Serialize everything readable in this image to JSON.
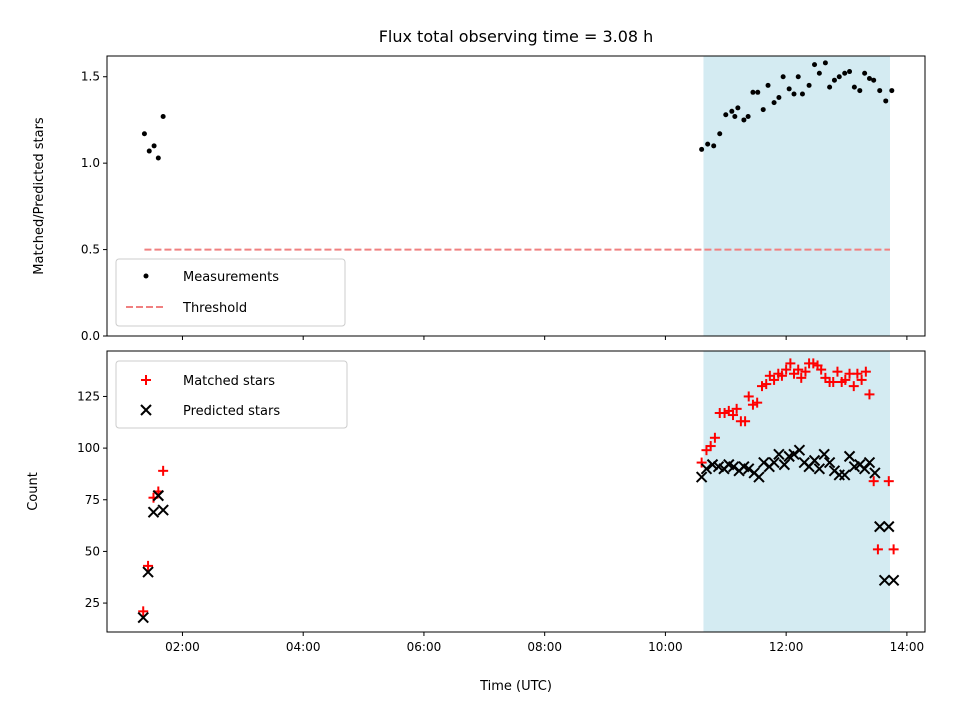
{
  "chart_data": [
    {
      "type": "scatter",
      "title": "Flux total observing time = 3.08 h",
      "ylabel": "Matched/Predicted stars",
      "ylim": [
        0,
        1.62
      ],
      "yticks": [
        0.0,
        0.5,
        1.0,
        1.5
      ],
      "ytick_labels": [
        "0.0",
        "0.5",
        "1.0",
        "1.5"
      ],
      "xlim_hours": [
        0.75,
        14.3
      ],
      "xticks_hours": [
        2,
        4,
        6,
        8,
        10,
        12,
        14
      ],
      "xtick_labels_visible": false,
      "shaded_span_hours": [
        10.63,
        13.72
      ],
      "shaded_color": "#d4ebf2",
      "legend_position": "lower-left",
      "series": [
        {
          "name": "Measurements",
          "marker": "dot",
          "color": "#000000",
          "x": [
            1.37,
            1.45,
            1.53,
            1.6,
            1.68,
            10.6,
            10.7,
            10.8,
            10.9,
            11.0,
            11.1,
            11.15,
            11.2,
            11.3,
            11.37,
            11.45,
            11.53,
            11.62,
            11.7,
            11.8,
            11.88,
            11.95,
            12.05,
            12.13,
            12.2,
            12.27,
            12.38,
            12.47,
            12.55,
            12.65,
            12.72,
            12.8,
            12.88,
            12.97,
            13.05,
            13.13,
            13.22,
            13.3,
            13.38,
            13.45,
            13.55,
            13.65,
            13.75
          ],
          "y": [
            1.17,
            1.07,
            1.1,
            1.03,
            1.27,
            1.08,
            1.11,
            1.1,
            1.17,
            1.28,
            1.3,
            1.27,
            1.32,
            1.25,
            1.27,
            1.41,
            1.41,
            1.31,
            1.45,
            1.35,
            1.38,
            1.5,
            1.43,
            1.4,
            1.5,
            1.4,
            1.45,
            1.57,
            1.52,
            1.58,
            1.44,
            1.48,
            1.5,
            1.52,
            1.53,
            1.44,
            1.42,
            1.52,
            1.49,
            1.48,
            1.42,
            1.36,
            1.42
          ]
        },
        {
          "name": "Threshold",
          "marker": "dashed-line",
          "color": "#f08080",
          "x": [
            1.37,
            13.72
          ],
          "y": [
            0.5,
            0.5
          ]
        }
      ]
    },
    {
      "type": "scatter",
      "xlabel": "Time (UTC)",
      "ylabel": "Count",
      "ylim": [
        11,
        147
      ],
      "yticks": [
        25,
        50,
        75,
        100,
        125
      ],
      "ytick_labels": [
        "25",
        "50",
        "75",
        "100",
        "125"
      ],
      "xlim_hours": [
        0.75,
        14.3
      ],
      "xticks_hours": [
        2,
        4,
        6,
        8,
        10,
        12,
        14
      ],
      "xtick_labels": [
        "02:00",
        "04:00",
        "06:00",
        "08:00",
        "10:00",
        "12:00",
        "14:00"
      ],
      "shaded_span_hours": [
        10.63,
        13.72
      ],
      "shaded_color": "#d4ebf2",
      "legend_position": "top-left",
      "series": [
        {
          "name": "Matched stars",
          "marker": "plus",
          "color": "#ff0000",
          "x": [
            1.35,
            1.43,
            1.52,
            1.6,
            1.68,
            10.6,
            10.68,
            10.75,
            10.82,
            10.9,
            10.98,
            11.05,
            11.12,
            11.18,
            11.25,
            11.32,
            11.38,
            11.45,
            11.52,
            11.6,
            11.67,
            11.73,
            11.8,
            11.87,
            11.93,
            12.0,
            12.07,
            12.13,
            12.2,
            12.25,
            12.32,
            12.38,
            12.45,
            12.52,
            12.58,
            12.65,
            12.72,
            12.78,
            12.85,
            12.92,
            12.98,
            13.05,
            13.12,
            13.18,
            13.25,
            13.32,
            13.38,
            13.45,
            13.52,
            13.6,
            13.67,
            13.75
          ],
          "y": [
            21,
            43,
            76,
            79,
            89,
            93,
            99,
            101,
            105,
            117,
            117,
            118,
            116,
            119,
            113,
            113,
            125,
            121,
            122,
            130,
            131,
            135,
            133,
            136,
            135,
            138,
            141,
            136,
            138,
            134,
            137,
            141,
            141,
            140,
            138,
            134,
            132,
            132,
            137,
            132,
            133,
            136,
            130,
            136,
            133,
            137,
            126,
            84,
            51,
            51,
            51,
            51
          ],
          "x_trim": 49
        },
        {
          "name": "Predicted stars",
          "marker": "x",
          "color": "#000000",
          "x": [
            1.35,
            1.43,
            1.52,
            1.6,
            1.68,
            10.6,
            10.68,
            10.78,
            10.88,
            10.97,
            11.05,
            11.13,
            11.22,
            11.3,
            11.38,
            11.47,
            11.55,
            11.63,
            11.72,
            11.8,
            11.88,
            11.97,
            12.05,
            12.13,
            12.22,
            12.3,
            12.38,
            12.47,
            12.55,
            12.63,
            12.72,
            12.8,
            12.88,
            12.97,
            13.05,
            13.13,
            13.22,
            13.3,
            13.38,
            13.47,
            13.55,
            13.63,
            13.72
          ],
          "y": [
            18,
            40,
            69,
            77,
            70,
            86,
            90,
            92,
            91,
            90,
            92,
            91,
            89,
            91,
            90,
            88,
            86,
            93,
            91,
            93,
            97,
            92,
            96,
            97,
            99,
            93,
            91,
            94,
            90,
            97,
            93,
            89,
            87,
            87,
            96,
            91,
            92,
            90,
            93,
            88,
            62,
            36,
            36
          ],
          "x_trim": 42
        }
      ]
    }
  ]
}
